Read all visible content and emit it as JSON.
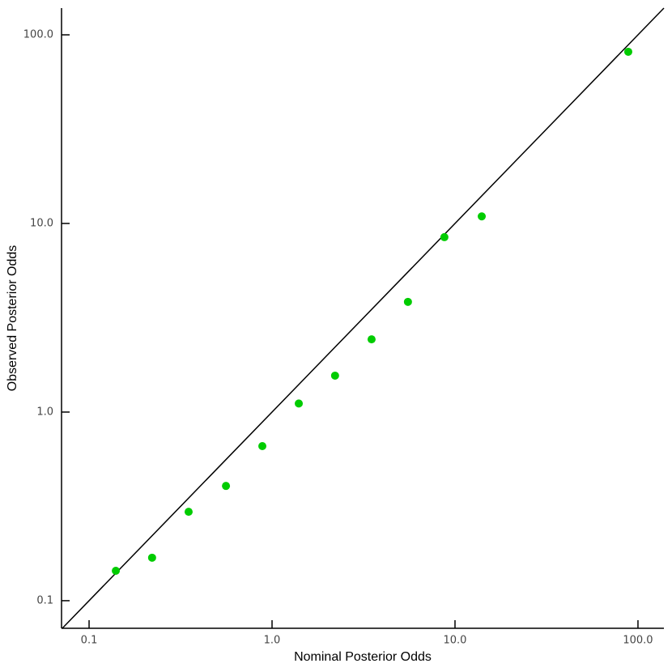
{
  "chart_data": {
    "type": "scatter",
    "xlabel": "Nominal Posterior Odds",
    "ylabel": "Observed Posterior Odds",
    "x": [
      0.14,
      0.221,
      0.35,
      0.56,
      0.885,
      1.4,
      2.21,
      3.5,
      5.53,
      8.75,
      14.0,
      88.5
    ],
    "series": [
      {
        "color": "#00cc00",
        "values": [
          0.144,
          0.169,
          0.296,
          0.406,
          0.66,
          1.11,
          1.56,
          2.43,
          3.84,
          8.46,
          10.9,
          81.3
        ]
      }
    ],
    "xlim": [
      0.0707,
      138.6
    ],
    "ylim": [
      0.0714,
      138.6
    ],
    "xticks": [
      0.1,
      {
        "value": 1,
        "label": "1.0"
      },
      {
        "value": 10,
        "label": "10.0"
      },
      {
        "value": 100,
        "label": "100.0"
      }
    ],
    "yticks": [
      0.1,
      {
        "value": 1,
        "label": "1.0"
      },
      {
        "value": 10,
        "label": "10.0"
      },
      {
        "value": 100,
        "label": "100.0"
      }
    ],
    "xscale": "log",
    "yscale": "log",
    "diagonal": true,
    "grid": false
  }
}
